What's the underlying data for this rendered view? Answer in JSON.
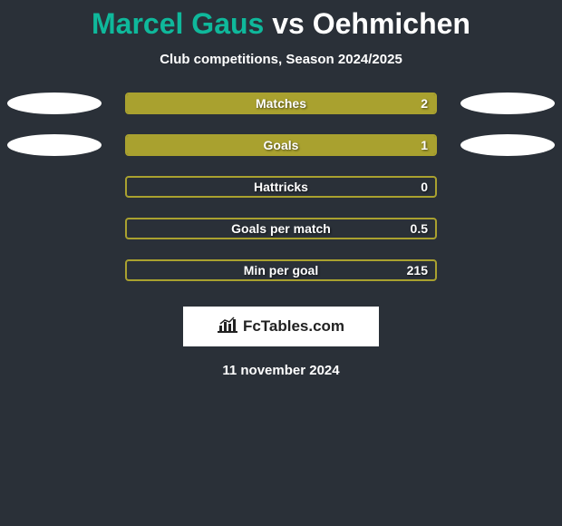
{
  "title": {
    "player1": "Marcel Gaus",
    "vs": "vs",
    "player2": "Oehmichen",
    "player1_color": "#0fb89b",
    "vs_color": "#ffffff",
    "player2_color": "#ffffff"
  },
  "subtitle": "Club competitions, Season 2024/2025",
  "background_color": "#2a3038",
  "ellipse_colors": {
    "left": "#ffffff",
    "right": "#ffffff"
  },
  "rows": [
    {
      "label": "Matches",
      "value": "2",
      "fill_color": "#a9a12f",
      "border_color": "#a9a12f",
      "fill_pct": 100,
      "show_ellipses": true
    },
    {
      "label": "Goals",
      "value": "1",
      "fill_color": "#a9a12f",
      "border_color": "#a9a12f",
      "fill_pct": 100,
      "show_ellipses": true
    },
    {
      "label": "Hattricks",
      "value": "0",
      "fill_color": "#a9a12f",
      "border_color": "#a9a12f",
      "fill_pct": 0,
      "show_ellipses": false
    },
    {
      "label": "Goals per match",
      "value": "0.5",
      "fill_color": "#a9a12f",
      "border_color": "#a9a12f",
      "fill_pct": 0,
      "show_ellipses": false
    },
    {
      "label": "Min per goal",
      "value": "215",
      "fill_color": "#a9a12f",
      "border_color": "#a9a12f",
      "fill_pct": 0,
      "show_ellipses": false
    }
  ],
  "logo": {
    "text": "FcTables.com"
  },
  "date": "11 november 2024"
}
